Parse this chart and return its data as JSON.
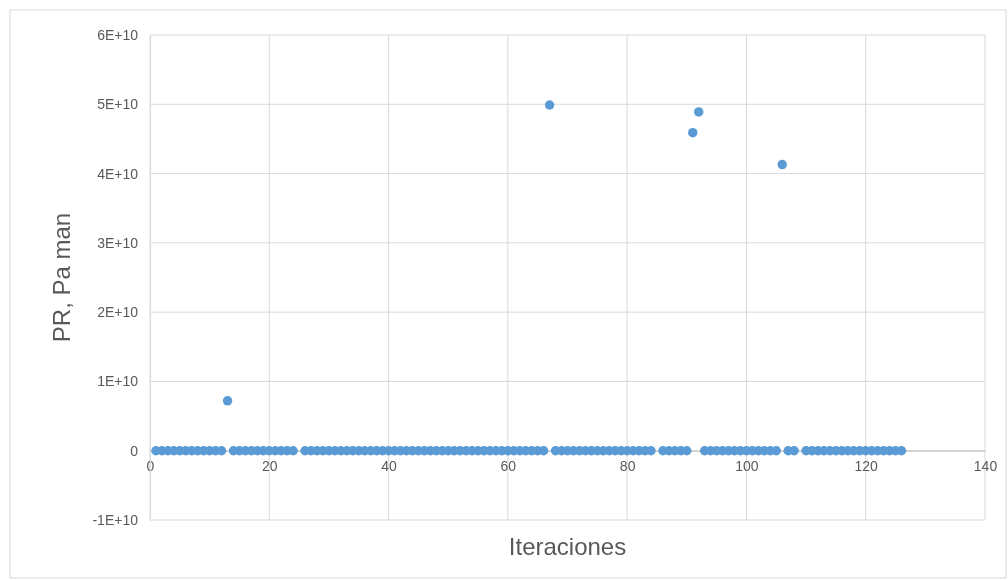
{
  "chart_data": {
    "type": "scatter",
    "xlabel": "Iteraciones",
    "ylabel": "PR, Pa man",
    "color": "#5b9bd5",
    "marker": "circle",
    "grid": true,
    "x": [
      1,
      2,
      3,
      4,
      5,
      6,
      7,
      8,
      9,
      10,
      11,
      12,
      13,
      14,
      15,
      16,
      17,
      18,
      19,
      20,
      21,
      22,
      23,
      24,
      25,
      26,
      27,
      28,
      29,
      30,
      31,
      32,
      33,
      34,
      35,
      36,
      37,
      38,
      39,
      40,
      41,
      42,
      43,
      44,
      45,
      46,
      47,
      48,
      49,
      50,
      51,
      52,
      53,
      54,
      55,
      56,
      57,
      58,
      59,
      60,
      61,
      62,
      63,
      64,
      65,
      66,
      67,
      68,
      69,
      70,
      71,
      72,
      73,
      74,
      75,
      76,
      77,
      78,
      79,
      80,
      81,
      82,
      83,
      84,
      85,
      86,
      87,
      88,
      89,
      90,
      91,
      92,
      93,
      94,
      95,
      96,
      97,
      98,
      99,
      100,
      101,
      102,
      103,
      104,
      105,
      106,
      107,
      108,
      109,
      110,
      111,
      112,
      113,
      114,
      115,
      116,
      117,
      118,
      119,
      120,
      121,
      122,
      123,
      124,
      125,
      126
    ],
    "values": [
      0,
      0,
      0,
      0,
      0,
      0,
      0,
      0,
      0,
      0,
      0,
      0,
      7200000000.0,
      0,
      0,
      0,
      0,
      0,
      0,
      0,
      0,
      0,
      0,
      0,
      null,
      0,
      0,
      0,
      0,
      0,
      0,
      0,
      0,
      0,
      0,
      0,
      0,
      0,
      0,
      0,
      0,
      0,
      0,
      0,
      0,
      0,
      0,
      0,
      0,
      0,
      0,
      0,
      0,
      0,
      0,
      0,
      0,
      0,
      0,
      0,
      0,
      0,
      0,
      0,
      0,
      0,
      49900000000.0,
      0,
      0,
      0,
      0,
      0,
      0,
      0,
      0,
      0,
      0,
      0,
      0,
      0,
      0,
      0,
      0,
      0,
      null,
      0,
      0,
      0,
      0,
      0,
      45900000000.0,
      48900000000.0,
      0,
      0,
      0,
      0,
      0,
      0,
      0,
      0,
      0,
      0,
      0,
      0,
      0,
      41300000000.0,
      0,
      0,
      null,
      0,
      0,
      0,
      0,
      0,
      0,
      0,
      0,
      0,
      0,
      0,
      0,
      0,
      0,
      0,
      0,
      0
    ],
    "xlim": [
      0,
      140
    ],
    "xticks": [
      0,
      20,
      40,
      60,
      80,
      100,
      120,
      140
    ],
    "ylim": [
      -10000000000.0,
      60000000000.0
    ],
    "yticks": [
      {
        "value": -10000000000.0,
        "label": "-1E+10"
      },
      {
        "value": 0,
        "label": "0"
      },
      {
        "value": 10000000000.0,
        "label": "1E+10"
      },
      {
        "value": 20000000000.0,
        "label": "2E+10"
      },
      {
        "value": 30000000000.0,
        "label": "3E+10"
      },
      {
        "value": 40000000000.0,
        "label": "4E+10"
      },
      {
        "value": 50000000000.0,
        "label": "5E+10"
      },
      {
        "value": 60000000000.0,
        "label": "6E+10"
      }
    ]
  }
}
